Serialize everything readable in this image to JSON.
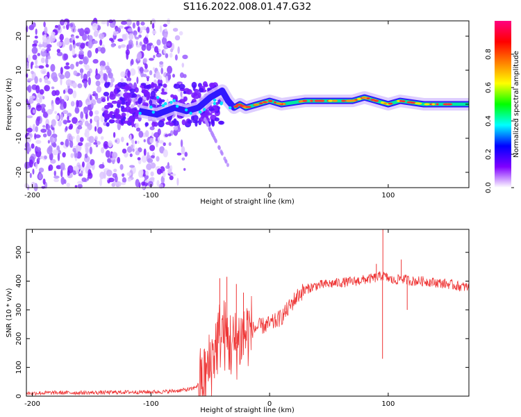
{
  "title": "S116.2022.008.01.47.G32",
  "chart_data": [
    {
      "type": "heatmap",
      "xlabel": "Height of straight line (km)",
      "ylabel": "Frequency (Hz)",
      "xlim": [
        -205,
        168
      ],
      "ylim": [
        -24.5,
        24.5
      ],
      "xticks": [
        -200,
        -100,
        0,
        100
      ],
      "yticks": [
        -20,
        -10,
        0,
        10,
        20
      ],
      "colorbar": {
        "label": "Normalized spectral amplitude",
        "range": [
          0,
          1
        ],
        "ticks": [
          0.0,
          0.2,
          0.4,
          0.6,
          0.8
        ],
        "colors": [
          "#ffffff",
          "#8000ff",
          "#0000ff",
          "#00ffff",
          "#00ff00",
          "#ffff00",
          "#ff8000",
          "#ff0000",
          "#ff0080"
        ]
      },
      "ridge": {
        "x": [
          -110,
          -95,
          -80,
          -70,
          -60,
          -50,
          -45,
          -40,
          -35,
          -30,
          -25,
          -20,
          -10,
          0,
          10,
          30,
          50,
          70,
          80,
          90,
          100,
          110,
          130,
          150,
          168
        ],
        "y": [
          -2,
          -3,
          -1,
          -2,
          -1,
          2,
          3,
          4,
          1,
          -1,
          0,
          -1,
          0,
          1,
          0,
          1,
          1,
          1,
          2,
          1,
          0,
          1,
          0,
          0,
          0
        ]
      },
      "scale": "linear",
      "grid": false
    },
    {
      "type": "line",
      "xlabel": "Height of straight line (km)",
      "ylabel": "SNR (10 * v/v)",
      "xlim": [
        -205,
        168
      ],
      "ylim": [
        0,
        580
      ],
      "xticks": [
        -200,
        -100,
        0,
        100
      ],
      "yticks": [
        0,
        100,
        200,
        300,
        400,
        500
      ],
      "color": "#ee3333",
      "series": [
        {
          "x": [
            -205,
            -180,
            -150,
            -120,
            -90,
            -75,
            -65,
            -55,
            -50,
            -45,
            -40,
            -35,
            -30,
            -25,
            -20,
            -15,
            -10,
            -5,
            0,
            5,
            10,
            15,
            20,
            25,
            30,
            35,
            40,
            50,
            60,
            70,
            80,
            90,
            95,
            100,
            105,
            110,
            115,
            120,
            130,
            140,
            150,
            160,
            168
          ],
          "y": [
            10,
            12,
            12,
            14,
            15,
            20,
            25,
            55,
            110,
            180,
            230,
            190,
            170,
            200,
            220,
            230,
            240,
            245,
            250,
            260,
            275,
            300,
            330,
            355,
            370,
            378,
            385,
            390,
            395,
            398,
            405,
            412,
            420,
            410,
            400,
            410,
            405,
            400,
            400,
            395,
            390,
            382,
            378
          ]
        }
      ],
      "spikes": [
        {
          "x": 95.5,
          "y": 580
        },
        {
          "x": 95.2,
          "y": 130
        },
        {
          "x": 111,
          "y": 475
        },
        {
          "x": 116,
          "y": 300
        },
        {
          "x": 90,
          "y": 460
        },
        {
          "x": -36,
          "y": 415
        },
        {
          "x": -42,
          "y": 410
        },
        {
          "x": -28,
          "y": 390
        },
        {
          "x": -22,
          "y": 360
        }
      ],
      "grid": false
    }
  ]
}
